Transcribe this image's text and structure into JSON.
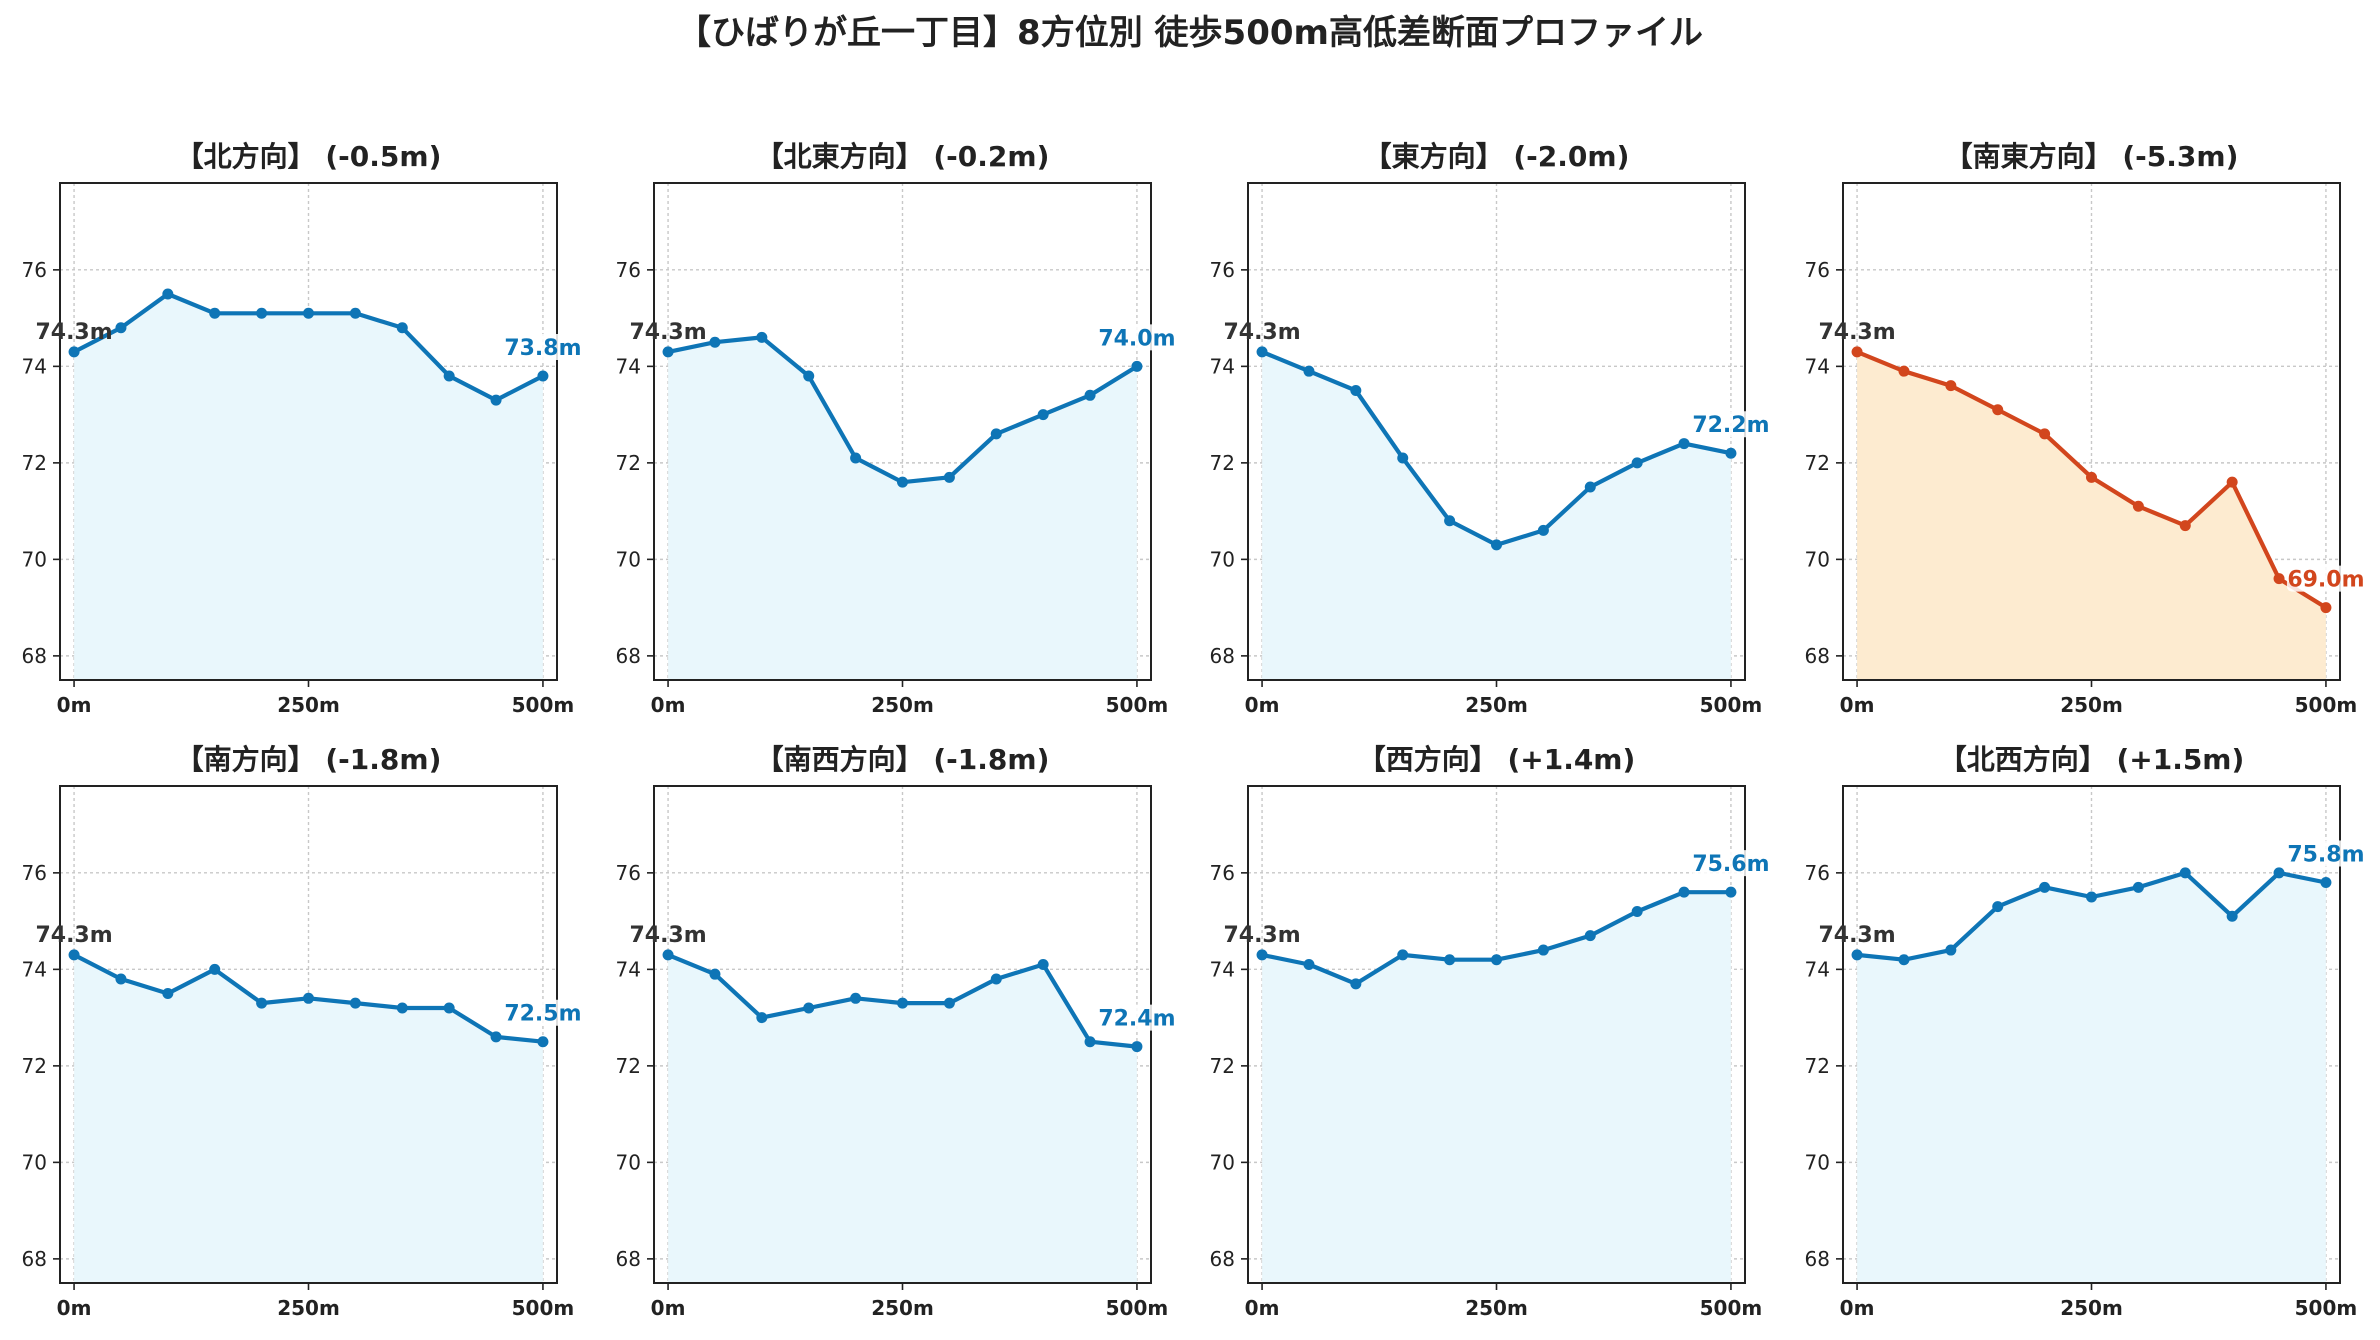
{
  "suptitle": "【ひばりが丘一丁目】8方位別 徒歩500m高低差断面プロファイル",
  "colors": {
    "normal_line": "#0e75b6",
    "normal_fill": "#e9f7fc",
    "highlight_line": "#d2461d",
    "highlight_fill": "#fdebd0",
    "start_label": "#333333",
    "grid": "#c8c8c8"
  },
  "chart_data": [
    {
      "type": "area",
      "title": "【北方向】 (-0.5m)",
      "x": [
        0,
        50,
        100,
        150,
        200,
        250,
        300,
        350,
        400,
        450,
        500
      ],
      "values": [
        74.3,
        74.8,
        75.5,
        75.1,
        75.1,
        75.1,
        75.1,
        74.8,
        73.8,
        73.3,
        73.8
      ],
      "start_label": "74.3m",
      "end_label": "73.8m",
      "highlight": false,
      "xticks": [
        0,
        250,
        500
      ],
      "xtick_labels": [
        "0m",
        "250m",
        "500m"
      ],
      "yticks": [
        68,
        70,
        72,
        74,
        76
      ],
      "ytick_labels": [
        "68",
        "70",
        "72",
        "74",
        "76"
      ],
      "xlim": [
        -15,
        515
      ],
      "ylim": [
        67.5,
        77.8
      ],
      "grid": true
    },
    {
      "type": "area",
      "title": "【北東方向】 (-0.2m)",
      "x": [
        0,
        50,
        100,
        150,
        200,
        250,
        300,
        350,
        400,
        450,
        500
      ],
      "values": [
        74.3,
        74.5,
        74.6,
        73.8,
        72.1,
        71.6,
        71.7,
        72.6,
        73.0,
        73.4,
        74.0
      ],
      "start_label": "74.3m",
      "end_label": "74.0m",
      "highlight": false,
      "xticks": [
        0,
        250,
        500
      ],
      "xtick_labels": [
        "0m",
        "250m",
        "500m"
      ],
      "yticks": [
        68,
        70,
        72,
        74,
        76
      ],
      "ytick_labels": [
        "68",
        "70",
        "72",
        "74",
        "76"
      ],
      "xlim": [
        -15,
        515
      ],
      "ylim": [
        67.5,
        77.8
      ],
      "grid": true
    },
    {
      "type": "area",
      "title": "【東方向】 (-2.0m)",
      "x": [
        0,
        50,
        100,
        150,
        200,
        250,
        300,
        350,
        400,
        450,
        500
      ],
      "values": [
        74.3,
        73.9,
        73.5,
        72.1,
        70.8,
        70.3,
        70.6,
        71.5,
        72.0,
        72.4,
        72.2
      ],
      "start_label": "74.3m",
      "end_label": "72.2m",
      "highlight": false,
      "xticks": [
        0,
        250,
        500
      ],
      "xtick_labels": [
        "0m",
        "250m",
        "500m"
      ],
      "yticks": [
        68,
        70,
        72,
        74,
        76
      ],
      "ytick_labels": [
        "68",
        "70",
        "72",
        "74",
        "76"
      ],
      "xlim": [
        -15,
        515
      ],
      "ylim": [
        67.5,
        77.8
      ],
      "grid": true
    },
    {
      "type": "area",
      "title": "【南東方向】 (-5.3m)",
      "x": [
        0,
        50,
        100,
        150,
        200,
        250,
        300,
        350,
        400,
        450,
        500
      ],
      "values": [
        74.3,
        73.9,
        73.6,
        73.1,
        72.6,
        71.7,
        71.1,
        70.7,
        71.6,
        69.6,
        69.0
      ],
      "start_label": "74.3m",
      "end_label": "69.0m",
      "highlight": true,
      "xticks": [
        0,
        250,
        500
      ],
      "xtick_labels": [
        "0m",
        "250m",
        "500m"
      ],
      "yticks": [
        68,
        70,
        72,
        74,
        76
      ],
      "ytick_labels": [
        "68",
        "70",
        "72",
        "74",
        "76"
      ],
      "xlim": [
        -15,
        515
      ],
      "ylim": [
        67.5,
        77.8
      ],
      "grid": true
    },
    {
      "type": "area",
      "title": "【南方向】 (-1.8m)",
      "x": [
        0,
        50,
        100,
        150,
        200,
        250,
        300,
        350,
        400,
        450,
        500
      ],
      "values": [
        74.3,
        73.8,
        73.5,
        74.0,
        73.3,
        73.4,
        73.3,
        73.2,
        73.2,
        72.6,
        72.5
      ],
      "start_label": "74.3m",
      "end_label": "72.5m",
      "highlight": false,
      "xticks": [
        0,
        250,
        500
      ],
      "xtick_labels": [
        "0m",
        "250m",
        "500m"
      ],
      "yticks": [
        68,
        70,
        72,
        74,
        76
      ],
      "ytick_labels": [
        "68",
        "70",
        "72",
        "74",
        "76"
      ],
      "xlim": [
        -15,
        515
      ],
      "ylim": [
        67.5,
        77.8
      ],
      "grid": true
    },
    {
      "type": "area",
      "title": "【南西方向】 (-1.8m)",
      "x": [
        0,
        50,
        100,
        150,
        200,
        250,
        300,
        350,
        400,
        450,
        500
      ],
      "values": [
        74.3,
        73.9,
        73.0,
        73.2,
        73.4,
        73.3,
        73.3,
        73.8,
        74.1,
        72.5,
        72.4
      ],
      "start_label": "74.3m",
      "end_label": "72.4m",
      "highlight": false,
      "xticks": [
        0,
        250,
        500
      ],
      "xtick_labels": [
        "0m",
        "250m",
        "500m"
      ],
      "yticks": [
        68,
        70,
        72,
        74,
        76
      ],
      "ytick_labels": [
        "68",
        "70",
        "72",
        "74",
        "76"
      ],
      "xlim": [
        -15,
        515
      ],
      "ylim": [
        67.5,
        77.8
      ],
      "grid": true
    },
    {
      "type": "area",
      "title": "【西方向】 (+1.4m)",
      "x": [
        0,
        50,
        100,
        150,
        200,
        250,
        300,
        350,
        400,
        450,
        500
      ],
      "values": [
        74.3,
        74.1,
        73.7,
        74.3,
        74.2,
        74.2,
        74.4,
        74.7,
        75.2,
        75.6,
        75.6
      ],
      "start_label": "74.3m",
      "end_label": "75.6m",
      "highlight": false,
      "xticks": [
        0,
        250,
        500
      ],
      "xtick_labels": [
        "0m",
        "250m",
        "500m"
      ],
      "yticks": [
        68,
        70,
        72,
        74,
        76
      ],
      "ytick_labels": [
        "68",
        "70",
        "72",
        "74",
        "76"
      ],
      "xlim": [
        -15,
        515
      ],
      "ylim": [
        67.5,
        77.8
      ],
      "grid": true
    },
    {
      "type": "area",
      "title": "【北西方向】 (+1.5m)",
      "x": [
        0,
        50,
        100,
        150,
        200,
        250,
        300,
        350,
        400,
        450,
        500
      ],
      "values": [
        74.3,
        74.2,
        74.4,
        75.3,
        75.7,
        75.5,
        75.7,
        76.0,
        75.1,
        76.0,
        75.8
      ],
      "start_label": "74.3m",
      "end_label": "75.8m",
      "highlight": false,
      "xticks": [
        0,
        250,
        500
      ],
      "xtick_labels": [
        "0m",
        "250m",
        "500m"
      ],
      "yticks": [
        68,
        70,
        72,
        74,
        76
      ],
      "ytick_labels": [
        "68",
        "70",
        "72",
        "74",
        "76"
      ],
      "xlim": [
        -15,
        515
      ],
      "ylim": [
        67.5,
        77.8
      ],
      "grid": true
    }
  ]
}
